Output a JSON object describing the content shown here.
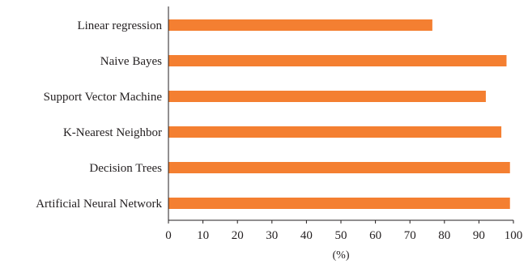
{
  "chart_data": {
    "type": "bar",
    "orientation": "horizontal",
    "categories": [
      "Linear regression",
      "Naive Bayes",
      "Support Vector Machine",
      "K-Nearest Neighbor",
      "Decision Trees",
      "Artificial Neural Network"
    ],
    "values": [
      76.5,
      98,
      92,
      96.5,
      99,
      99
    ],
    "xlabel": "(%)",
    "ylabel": "",
    "xlim": [
      0,
      100
    ],
    "xticks": [
      "0",
      "10",
      "20",
      "30",
      "40",
      "50",
      "60",
      "70",
      "80",
      "90",
      "100"
    ],
    "grid": false,
    "legend": "none",
    "bar_color": "#f47f31"
  }
}
